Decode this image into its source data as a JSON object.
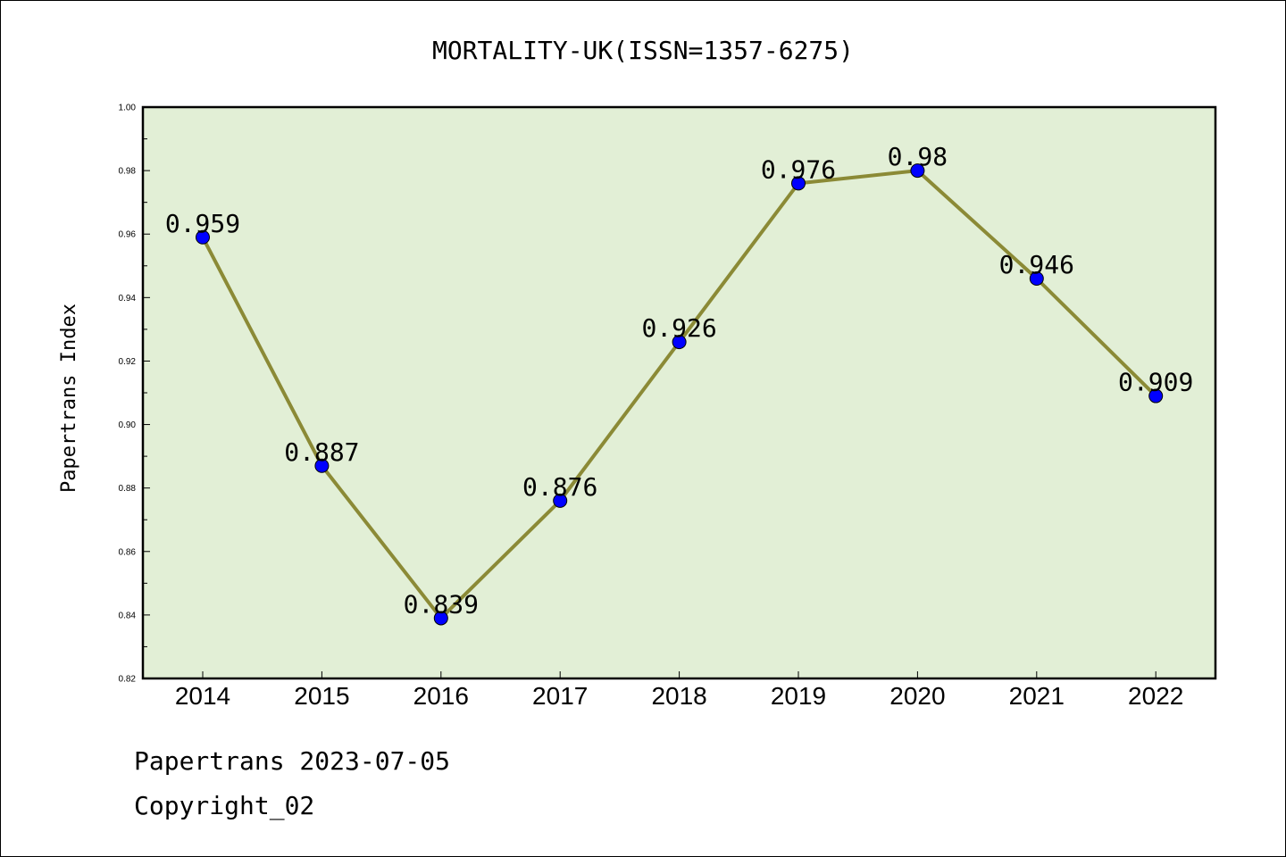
{
  "chart_data": {
    "type": "line",
    "title": "MORTALITY-UK(ISSN=1357-6275)",
    "xlabel": "",
    "ylabel": "Papertrans Index",
    "categories": [
      "2014",
      "2015",
      "2016",
      "2017",
      "2018",
      "2019",
      "2020",
      "2021",
      "2022"
    ],
    "values": [
      0.959,
      0.887,
      0.839,
      0.876,
      0.926,
      0.976,
      0.98,
      0.946,
      0.909
    ],
    "data_labels": [
      "0.959",
      "0.887",
      "0.839",
      "0.876",
      "0.926",
      "0.976",
      "0.98",
      "0.946",
      "0.909"
    ],
    "ylim": [
      0.82,
      1.0
    ],
    "yticks": [
      "0.82",
      "0.84",
      "0.86",
      "0.88",
      "0.90",
      "0.92",
      "0.94",
      "0.96",
      "0.98",
      "1.00"
    ],
    "grid": false,
    "colors": {
      "plot_background": "#e2efd6",
      "line": "#8b8a36",
      "marker": "#0000ff"
    }
  },
  "footer": {
    "line1": "Papertrans 2023-07-05",
    "line2": "Copyright_02"
  }
}
